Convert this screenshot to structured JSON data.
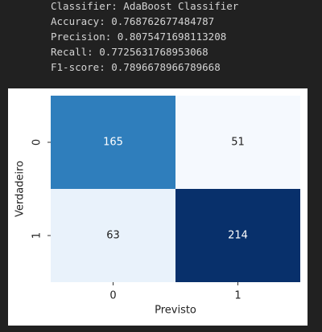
{
  "output": {
    "lines": [
      "Classifier: AdaBoost Classifier",
      "Accuracy: 0.768762677484787",
      "Precision: 0.8075471698113208",
      "Recall: 0.7725631768953068",
      "F1-score: 0.7896678966789668"
    ]
  },
  "chart_data": {
    "type": "heatmap",
    "x_label": "Previsto",
    "y_label": "Verdadeiro",
    "x_categories": [
      "0",
      "1"
    ],
    "y_categories": [
      "0",
      "1"
    ],
    "values": [
      [
        165,
        51
      ],
      [
        63,
        214
      ]
    ],
    "cell_colors": [
      [
        "#2f7ebc",
        "#f5f9fe"
      ],
      [
        "#e9f2fb",
        "#08306b"
      ]
    ],
    "label_colors": [
      [
        "#ffffff",
        "#222222"
      ],
      [
        "#222222",
        "#ffffff"
      ]
    ]
  }
}
